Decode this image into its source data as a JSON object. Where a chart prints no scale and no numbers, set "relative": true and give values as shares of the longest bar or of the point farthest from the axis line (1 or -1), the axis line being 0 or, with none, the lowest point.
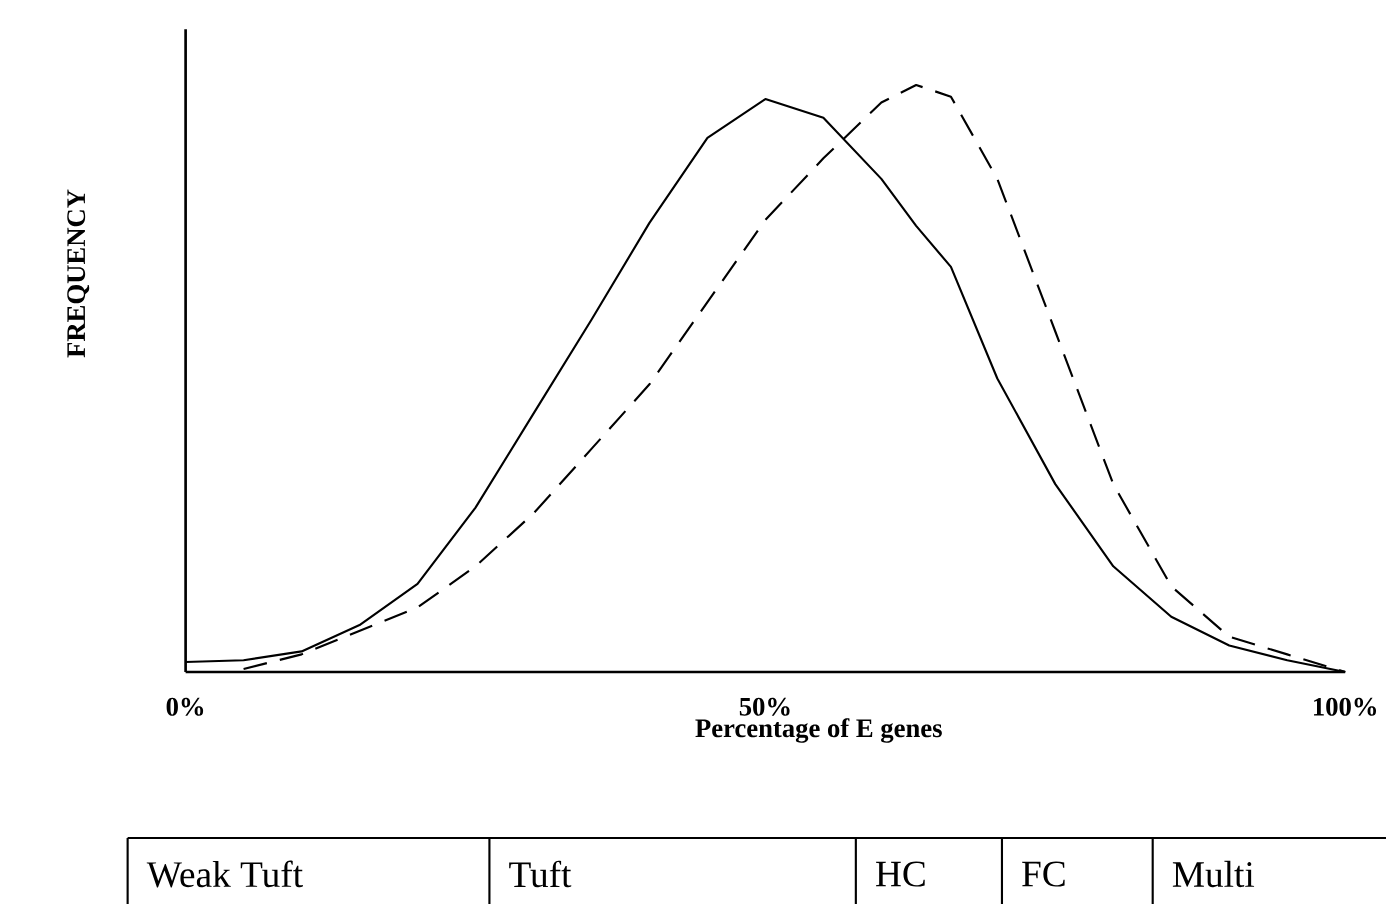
{
  "chart_data": {
    "type": "line",
    "relative": true,
    "xlabel": "Percentage of E genes",
    "ylabel": "FREQUENCY",
    "xlim": [
      0,
      100
    ],
    "xticks": [
      {
        "value": 0,
        "label": "0%"
      },
      {
        "value": 50,
        "label": "50%"
      },
      {
        "value": 100,
        "label": "100%"
      }
    ],
    "x": [
      0,
      5,
      10,
      15,
      20,
      25,
      30,
      35,
      40,
      45,
      50,
      55,
      60,
      63,
      66,
      70,
      75,
      80,
      85,
      90,
      95,
      100
    ],
    "series": [
      {
        "color": "#000000",
        "line_style": "solid",
        "values": [
          0.017,
          0.02,
          0.035,
          0.08,
          0.15,
          0.28,
          0.44,
          0.6,
          0.765,
          0.91,
          0.976,
          0.944,
          0.84,
          0.76,
          0.69,
          0.5,
          0.32,
          0.18,
          0.094,
          0.045,
          0.02,
          0.0
        ]
      },
      {
        "color": "#000000",
        "line_style": "dashed",
        "values": [
          null,
          0.005,
          0.03,
          0.07,
          0.11,
          0.18,
          0.27,
          0.38,
          0.49,
          0.63,
          0.77,
          0.875,
          0.97,
          1.0,
          0.98,
          0.84,
          0.58,
          0.32,
          0.146,
          0.06,
          0.03,
          0.0
        ]
      }
    ],
    "annotations": [
      "Weak Tuft",
      "Tuft",
      "HC",
      "FC",
      "Multi"
    ]
  }
}
